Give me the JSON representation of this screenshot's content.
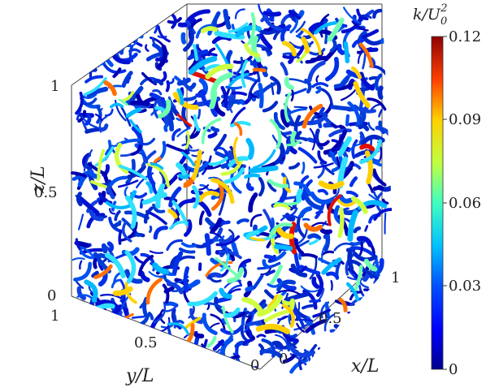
{
  "figure": {
    "axes": {
      "x_label": "x/L",
      "y_label": "y/L",
      "z_label": "z/L",
      "x_ticks": [
        "0",
        "0.5",
        "1"
      ],
      "y_ticks": [
        "1",
        "0.5",
        "0"
      ],
      "z_ticks": [
        "0",
        "0.5",
        "1"
      ]
    },
    "colorbar": {
      "label": "k/U",
      "label_sub": "0",
      "label_sup": "2",
      "ticks": [
        "0.12",
        "0.09",
        "0.06",
        "0.03",
        "0"
      ],
      "range": [
        0,
        0.12
      ],
      "colormap": "jet",
      "colors": [
        "#00008f",
        "#0000ff",
        "#0080ff",
        "#00ffff",
        "#80ff80",
        "#ffff00",
        "#ff8000",
        "#ff0000",
        "#800000"
      ]
    },
    "content": "turbulent vortex structures colored by kinetic energy"
  }
}
